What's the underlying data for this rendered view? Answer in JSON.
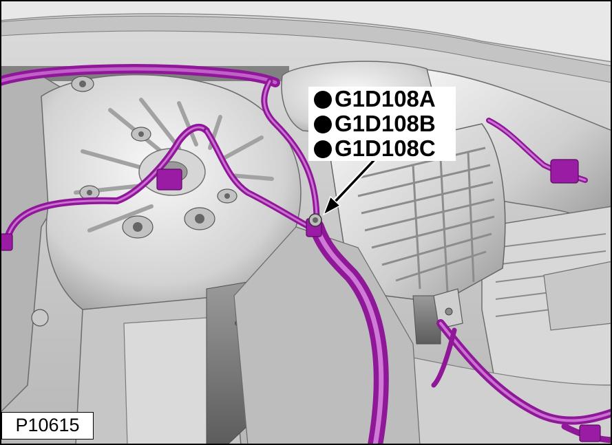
{
  "callout": {
    "connectors": [
      "G1D108A",
      "G1D108B",
      "G1D108C"
    ]
  },
  "figure_id": "P10615",
  "colors": {
    "harness": "#a020a8",
    "harness_highlight": "#d070d8",
    "metal_light": "#e6e6e6",
    "metal_mid": "#bdbdbd",
    "metal_dark": "#6e6e6e",
    "arrow": "#000000"
  }
}
